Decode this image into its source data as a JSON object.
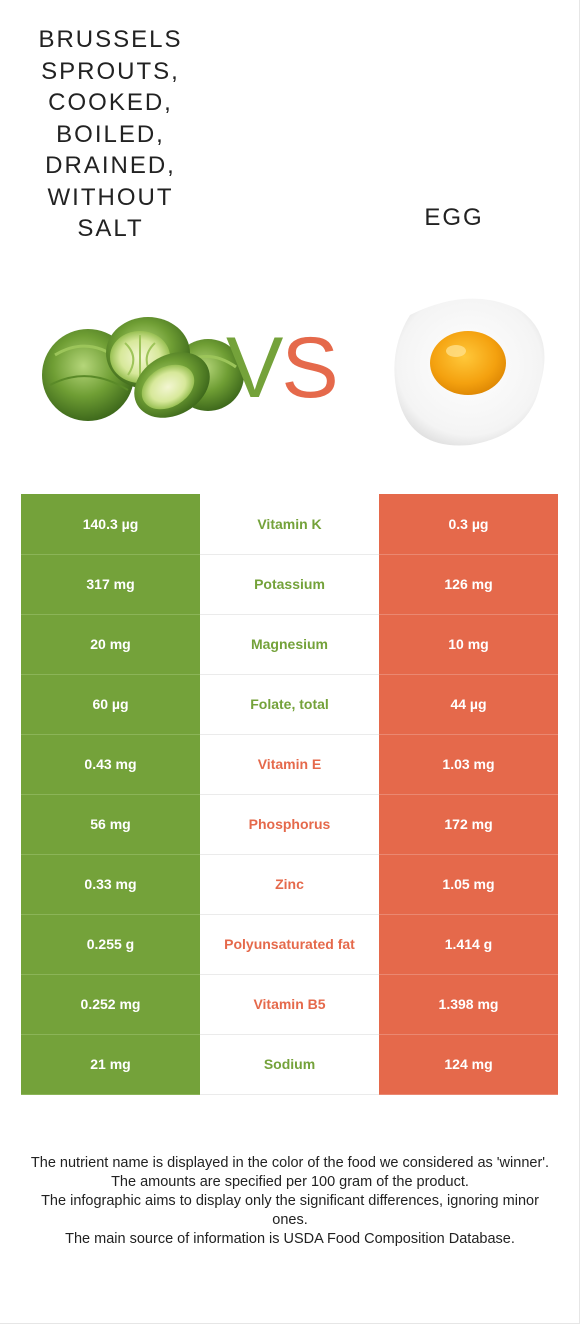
{
  "food_left": {
    "name": "Brussels sprouts, cooked, boiled, drained, without salt",
    "lines": [
      "BRUSSELS",
      "SPROUTS,",
      "COOKED,",
      "BOILED,",
      "DRAINED,",
      "WITHOUT",
      "SALT"
    ]
  },
  "food_right": {
    "name": "EGG"
  },
  "vs": {
    "v": "V",
    "s": "S"
  },
  "colors": {
    "green": "#74a23a",
    "orange": "#e5694b"
  },
  "rows": [
    {
      "left": "140.3 µg",
      "nutrient": "Vitamin K",
      "right": "0.3 µg",
      "winner": "left"
    },
    {
      "left": "317 mg",
      "nutrient": "Potassium",
      "right": "126 mg",
      "winner": "left"
    },
    {
      "left": "20 mg",
      "nutrient": "Magnesium",
      "right": "10 mg",
      "winner": "left"
    },
    {
      "left": "60 µg",
      "nutrient": "Folate, total",
      "right": "44 µg",
      "winner": "left"
    },
    {
      "left": "0.43 mg",
      "nutrient": "Vitamin E",
      "right": "1.03 mg",
      "winner": "right"
    },
    {
      "left": "56 mg",
      "nutrient": "Phosphorus",
      "right": "172 mg",
      "winner": "right"
    },
    {
      "left": "0.33 mg",
      "nutrient": "Zinc",
      "right": "1.05 mg",
      "winner": "right"
    },
    {
      "left": "0.255 g",
      "nutrient": "Polyunsaturated fat",
      "right": "1.414 g",
      "winner": "right"
    },
    {
      "left": "0.252 mg",
      "nutrient": "Vitamin B5",
      "right": "1.398 mg",
      "winner": "right"
    },
    {
      "left": "21 mg",
      "nutrient": "Sodium",
      "right": "124 mg",
      "winner": "left"
    }
  ],
  "notes": [
    "The nutrient name is displayed in the color of the food we considered as 'winner'.",
    "The amounts are specified per 100 gram of the product.",
    "The infographic aims to display only the significant differences, ignoring minor ones.",
    "The main source of information is USDA Food Composition Database."
  ]
}
